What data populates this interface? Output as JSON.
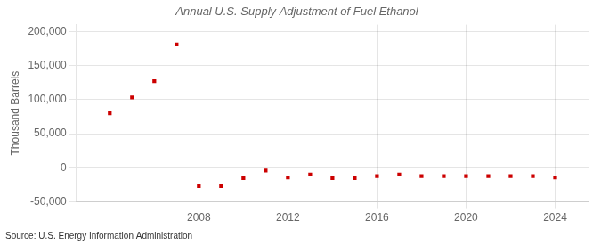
{
  "chart_data": {
    "type": "scatter",
    "title": "Annual U.S. Supply Adjustment of Fuel Ethanol",
    "ylabel": "Thousand Barrels",
    "source": "Source: U.S. Energy Information Administration",
    "x": [
      2004,
      2005,
      2006,
      2007,
      2008,
      2009,
      2010,
      2011,
      2012,
      2013,
      2014,
      2015,
      2016,
      2017,
      2018,
      2019,
      2020,
      2021,
      2022,
      2023,
      2024
    ],
    "values": [
      80000,
      103000,
      127000,
      181000,
      -27000,
      -27000,
      -15000,
      -4000,
      -14000,
      -10000,
      -15000,
      -15000,
      -12000,
      -10000,
      -12000,
      -12000,
      -12000,
      -12000,
      -12000,
      -12000,
      -14000
    ],
    "color": "#cc0000",
    "marker": "square",
    "xlim": [
      2002.5,
      2025.5
    ],
    "xticks": [
      2008,
      2012,
      2016,
      2020,
      2024
    ],
    "ylim": [
      -50000,
      210000
    ],
    "yticks": [
      {
        "value": -50000,
        "label": "-50,000"
      },
      0,
      {
        "value": 50000,
        "label": "50,000"
      },
      {
        "value": 100000,
        "label": "100,000"
      },
      {
        "value": 150000,
        "label": "150,000"
      },
      {
        "value": 200000,
        "label": "200,000"
      }
    ],
    "grid": true
  }
}
